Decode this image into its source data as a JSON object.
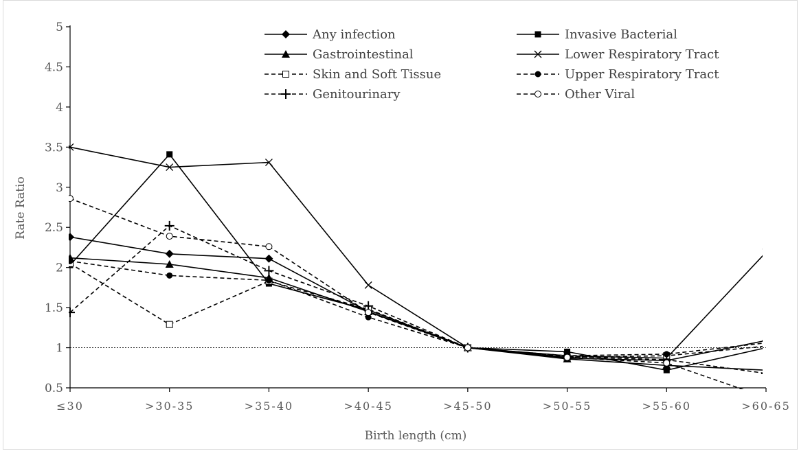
{
  "chart_data": {
    "type": "line",
    "title": "",
    "xlabel": "Birth length (cm)",
    "ylabel": "Rate Ratio",
    "ylim": [
      0.5,
      5
    ],
    "yticks": [
      "0.5",
      "1",
      "1.5",
      "2",
      "2.5",
      "3",
      "3.5",
      "4",
      "4.5",
      "5"
    ],
    "categories": [
      "≤30",
      ">30-35",
      ">35-40",
      ">40-45",
      ">45-50",
      ">50-55",
      ">55-60",
      ">60-65"
    ],
    "reference_line": 1,
    "grid": false,
    "legend_position": "top-right",
    "series": [
      {
        "name": "Any infection",
        "values": [
          2.38,
          2.17,
          2.11,
          1.45,
          1.0,
          0.87,
          0.84,
          1.09
        ],
        "line": "solid",
        "marker": "diamond"
      },
      {
        "name": "Invasive Bacterial",
        "values": [
          2.03,
          3.41,
          1.8,
          1.47,
          1.0,
          0.95,
          0.72,
          1.0
        ],
        "line": "solid",
        "marker": "square"
      },
      {
        "name": "Gastrointestinal",
        "values": [
          2.12,
          2.04,
          1.87,
          1.45,
          1.0,
          0.86,
          0.78,
          0.72
        ],
        "line": "solid",
        "marker": "triangle"
      },
      {
        "name": "Lower Respiratory Tract",
        "values": [
          3.5,
          3.25,
          3.31,
          1.78,
          1.0,
          0.9,
          0.87,
          2.19
        ],
        "line": "solid",
        "marker": "x"
      },
      {
        "name": "Skin and Soft Tissue",
        "values": [
          2.05,
          1.29,
          1.83,
          1.48,
          1.0,
          0.88,
          0.9,
          1.02
        ],
        "line": "dashed",
        "marker": "open-square"
      },
      {
        "name": "Upper Respiratory Tract",
        "values": [
          2.08,
          1.9,
          1.84,
          1.38,
          1.0,
          0.9,
          0.92,
          1.06
        ],
        "line": "dashed",
        "marker": "filled-circle"
      },
      {
        "name": "Genitourinary",
        "values": [
          1.44,
          2.52,
          1.96,
          1.52,
          1.0,
          0.89,
          0.85,
          0.68
        ],
        "line": "dashed",
        "marker": "plus"
      },
      {
        "name": "Other Viral",
        "values": [
          2.86,
          2.39,
          2.26,
          1.44,
          1.0,
          0.88,
          0.81,
          0.38
        ],
        "line": "dashed",
        "marker": "open-circle"
      }
    ]
  }
}
